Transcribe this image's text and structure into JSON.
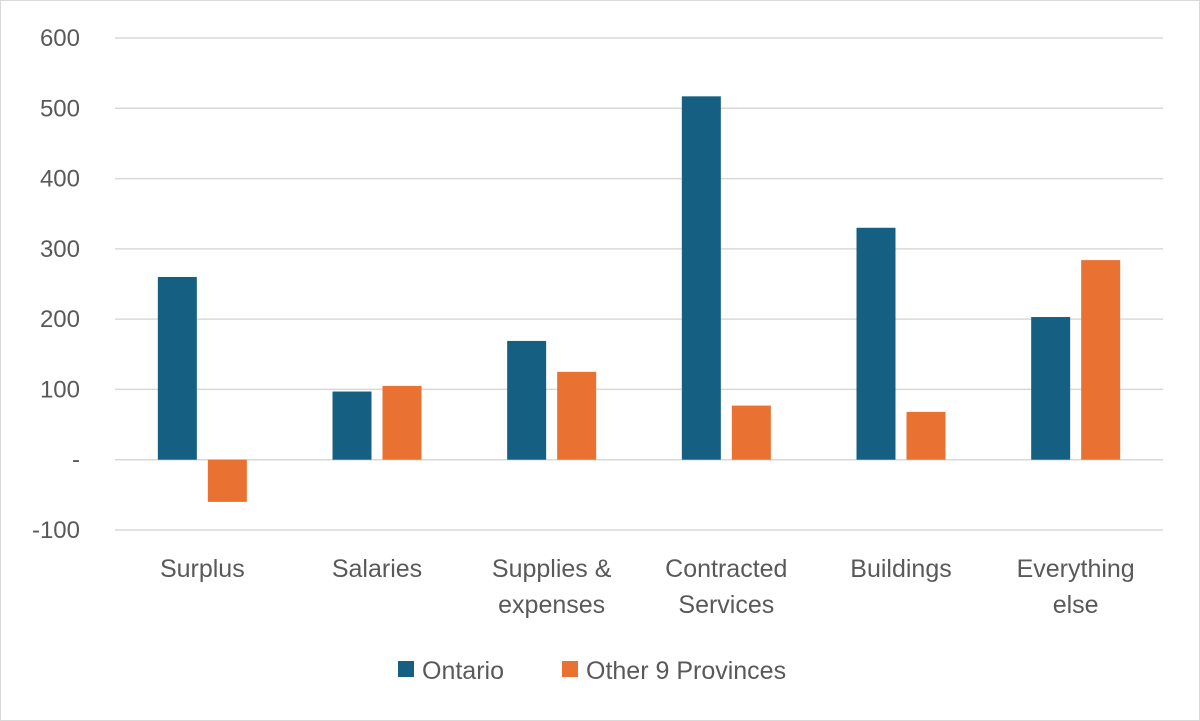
{
  "chart_data": {
    "type": "bar",
    "categories": [
      [
        "Surplus"
      ],
      [
        "Salaries"
      ],
      [
        "Supplies &",
        "expenses"
      ],
      [
        "Contracted",
        "Services"
      ],
      [
        "Buildings"
      ],
      [
        "Everything",
        "else"
      ]
    ],
    "series": [
      {
        "name": "Ontario",
        "color": "#156082",
        "values": [
          260,
          97,
          169,
          517,
          330,
          203
        ]
      },
      {
        "name": "Other 9 Provinces",
        "color": "#E97132",
        "values": [
          -60,
          105,
          125,
          77,
          68,
          284
        ]
      }
    ],
    "ylim": [
      -100,
      600
    ],
    "yticks": [
      600,
      500,
      400,
      300,
      200,
      100,
      0,
      -100
    ],
    "ytick_labels": [
      "600",
      "500",
      "400",
      "300",
      "200",
      "100",
      "-",
      "-100"
    ],
    "grid": true,
    "legend_position": "bottom"
  }
}
